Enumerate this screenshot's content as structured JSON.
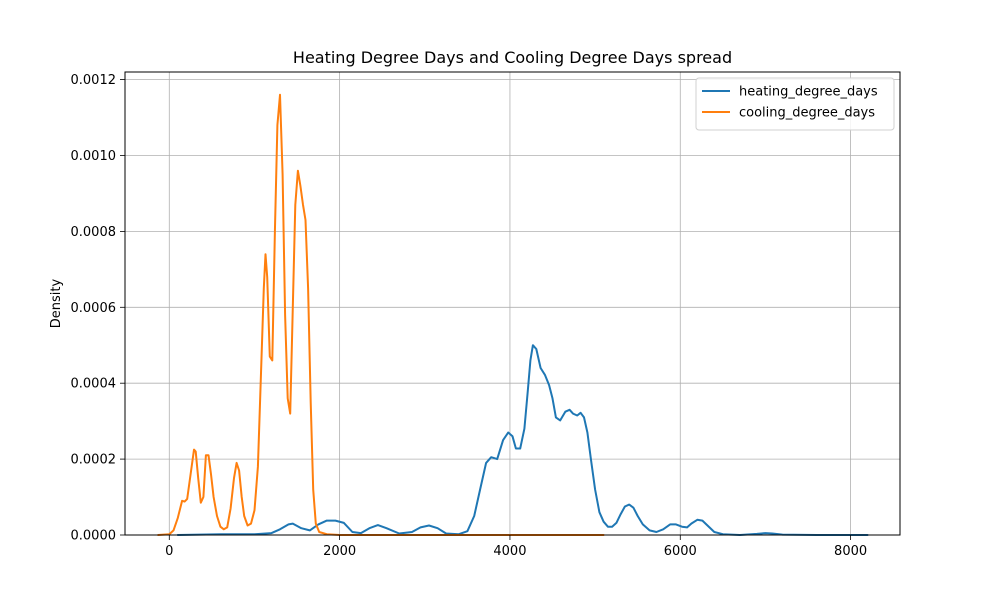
{
  "chart_data": {
    "type": "line",
    "title": "Heating Degree Days and Cooling Degree Days spread",
    "xlabel": "",
    "ylabel": "Density",
    "xlim": [
      -520,
      8580
    ],
    "ylim": [
      0,
      0.00122
    ],
    "xticks": [
      0,
      2000,
      4000,
      6000,
      8000
    ],
    "xtick_labels": [
      "0",
      "2000",
      "4000",
      "6000",
      "8000"
    ],
    "yticks": [
      0,
      0.0002,
      0.0004,
      0.0006,
      0.0008,
      0.001,
      0.0012
    ],
    "ytick_labels": [
      "0.0000",
      "0.0002",
      "0.0004",
      "0.0006",
      "0.0008",
      "0.0010",
      "0.0012"
    ],
    "grid": true,
    "legend_position": "top-right",
    "series": [
      {
        "name": "heating_degree_days",
        "color": "#1f77b4",
        "points": [
          [
            100,
            0.0
          ],
          [
            600,
            2e-06
          ],
          [
            1000,
            2e-06
          ],
          [
            1200,
            5e-06
          ],
          [
            1300,
            1.5e-05
          ],
          [
            1400,
            2.8e-05
          ],
          [
            1450,
            3e-05
          ],
          [
            1550,
            1.8e-05
          ],
          [
            1650,
            1.2e-05
          ],
          [
            1750,
            2.8e-05
          ],
          [
            1850,
            3.8e-05
          ],
          [
            1950,
            3.8e-05
          ],
          [
            2050,
            3.2e-05
          ],
          [
            2150,
            8e-06
          ],
          [
            2250,
            5e-06
          ],
          [
            2350,
            1.8e-05
          ],
          [
            2450,
            2.6e-05
          ],
          [
            2550,
            1.8e-05
          ],
          [
            2700,
            4e-06
          ],
          [
            2850,
            8e-06
          ],
          [
            2950,
            2e-05
          ],
          [
            3050,
            2.5e-05
          ],
          [
            3150,
            1.8e-05
          ],
          [
            3250,
            4e-06
          ],
          [
            3400,
            2e-06
          ],
          [
            3500,
            1e-05
          ],
          [
            3580,
            5e-05
          ],
          [
            3650,
            0.00012
          ],
          [
            3720,
            0.00019
          ],
          [
            3780,
            0.000205
          ],
          [
            3850,
            0.0002
          ],
          [
            3920,
            0.00025
          ],
          [
            3980,
            0.00027
          ],
          [
            4030,
            0.00026
          ],
          [
            4070,
            0.000228
          ],
          [
            4120,
            0.000228
          ],
          [
            4170,
            0.00028
          ],
          [
            4210,
            0.00038
          ],
          [
            4240,
            0.00046
          ],
          [
            4270,
            0.0005
          ],
          [
            4310,
            0.00049
          ],
          [
            4360,
            0.00044
          ],
          [
            4410,
            0.000422
          ],
          [
            4460,
            0.000395
          ],
          [
            4500,
            0.00036
          ],
          [
            4540,
            0.00031
          ],
          [
            4590,
            0.000302
          ],
          [
            4650,
            0.000325
          ],
          [
            4700,
            0.00033
          ],
          [
            4740,
            0.00032
          ],
          [
            4790,
            0.000315
          ],
          [
            4830,
            0.000322
          ],
          [
            4870,
            0.00031
          ],
          [
            4910,
            0.00027
          ],
          [
            4950,
            0.0002
          ],
          [
            5000,
            0.00012
          ],
          [
            5050,
            6e-05
          ],
          [
            5100,
            3.5e-05
          ],
          [
            5150,
            2.2e-05
          ],
          [
            5200,
            2.2e-05
          ],
          [
            5250,
            3.2e-05
          ],
          [
            5300,
            5.5e-05
          ],
          [
            5350,
            7.5e-05
          ],
          [
            5400,
            8e-05
          ],
          [
            5450,
            7.2e-05
          ],
          [
            5500,
            5e-05
          ],
          [
            5560,
            2.8e-05
          ],
          [
            5640,
            1.2e-05
          ],
          [
            5720,
            8e-06
          ],
          [
            5800,
            1.5e-05
          ],
          [
            5880,
            2.8e-05
          ],
          [
            5950,
            2.8e-05
          ],
          [
            6020,
            2.2e-05
          ],
          [
            6080,
            2e-05
          ],
          [
            6130,
            3e-05
          ],
          [
            6200,
            4e-05
          ],
          [
            6260,
            3.8e-05
          ],
          [
            6320,
            2.5e-05
          ],
          [
            6400,
            8e-06
          ],
          [
            6500,
            2e-06
          ],
          [
            6700,
            0.0
          ],
          [
            6900,
            3e-06
          ],
          [
            7000,
            5e-06
          ],
          [
            7080,
            4e-06
          ],
          [
            7200,
            1e-06
          ],
          [
            7600,
            0.0
          ],
          [
            8200,
            0.0
          ]
        ]
      },
      {
        "name": "cooling_degree_days",
        "color": "#ff7f0e",
        "points": [
          [
            -130,
            0.0
          ],
          [
            0,
            2e-06
          ],
          [
            50,
            1.2e-05
          ],
          [
            100,
            4.5e-05
          ],
          [
            150,
            9e-05
          ],
          [
            180,
            8.8e-05
          ],
          [
            210,
            9.5e-05
          ],
          [
            250,
            0.00016
          ],
          [
            290,
            0.000225
          ],
          [
            310,
            0.00022
          ],
          [
            340,
            0.00015
          ],
          [
            370,
            8.5e-05
          ],
          [
            400,
            0.0001
          ],
          [
            430,
            0.00021
          ],
          [
            460,
            0.00021
          ],
          [
            490,
            0.00016
          ],
          [
            520,
            0.0001
          ],
          [
            560,
            5e-05
          ],
          [
            600,
            2.2e-05
          ],
          [
            640,
            1.5e-05
          ],
          [
            680,
            2e-05
          ],
          [
            720,
            7e-05
          ],
          [
            760,
            0.00015
          ],
          [
            790,
            0.00019
          ],
          [
            820,
            0.00017
          ],
          [
            850,
            0.0001
          ],
          [
            880,
            5e-05
          ],
          [
            920,
            2.5e-05
          ],
          [
            960,
            3e-05
          ],
          [
            1000,
            6.5e-05
          ],
          [
            1040,
            0.00018
          ],
          [
            1080,
            0.00045
          ],
          [
            1110,
            0.00065
          ],
          [
            1130,
            0.00074
          ],
          [
            1150,
            0.00068
          ],
          [
            1180,
            0.00047
          ],
          [
            1210,
            0.00046
          ],
          [
            1240,
            0.0008
          ],
          [
            1270,
            0.00108
          ],
          [
            1300,
            0.00116
          ],
          [
            1330,
            0.00095
          ],
          [
            1360,
            0.00058
          ],
          [
            1390,
            0.00036
          ],
          [
            1420,
            0.00032
          ],
          [
            1450,
            0.0006
          ],
          [
            1480,
            0.00087
          ],
          [
            1510,
            0.00096
          ],
          [
            1540,
            0.00092
          ],
          [
            1570,
            0.00087
          ],
          [
            1600,
            0.00083
          ],
          [
            1630,
            0.00065
          ],
          [
            1660,
            0.00035
          ],
          [
            1690,
            0.00012
          ],
          [
            1720,
            3e-05
          ],
          [
            1760,
            8e-06
          ],
          [
            1850,
            2e-06
          ],
          [
            2000,
            0.0
          ],
          [
            5100,
            0.0
          ]
        ]
      }
    ]
  }
}
